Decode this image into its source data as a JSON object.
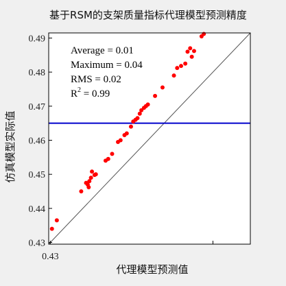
{
  "chart_data": {
    "type": "scatter",
    "title": "基于RSM的支架质量指标代理模型预测精度",
    "xlabel": "代理模型预测值",
    "ylabel": "仿真模型实际值",
    "xlim": [
      0.4295,
      0.4915
    ],
    "ylim": [
      0.4295,
      0.4915
    ],
    "xticks": [
      0.43
    ],
    "xtick_labels": [
      "0.43"
    ],
    "yticks": [
      0.43,
      0.44,
      0.45,
      0.46,
      0.47,
      0.48,
      0.49
    ],
    "ytick_labels": [
      "0.43",
      "0.44",
      "0.45",
      "0.46",
      "0.47",
      "0.48",
      "0.49"
    ],
    "minor_xtick_at": 0.48,
    "grid": false,
    "colors": {
      "points": "#ff0000",
      "reference_line": "#0000cc",
      "diagonal": "#555555"
    },
    "reference_line_y": 0.465,
    "diagonal": [
      [
        0.4295,
        0.4295
      ],
      [
        0.4915,
        0.4915
      ]
    ],
    "annotations": [
      "Average = 0.01",
      "Maximum = 0.04",
      "RMS = 0.02"
    ],
    "r2_label": {
      "base": "R",
      "sup": "2",
      "rest": " = 0.99"
    },
    "points": [
      [
        0.4305,
        0.434
      ],
      [
        0.432,
        0.4365
      ],
      [
        0.4395,
        0.445
      ],
      [
        0.441,
        0.4475
      ],
      [
        0.4415,
        0.447
      ],
      [
        0.442,
        0.448
      ],
      [
        0.4418,
        0.4462
      ],
      [
        0.4425,
        0.449
      ],
      [
        0.4428,
        0.4508
      ],
      [
        0.4436,
        0.4498
      ],
      [
        0.444,
        0.45
      ],
      [
        0.447,
        0.454
      ],
      [
        0.4478,
        0.4545
      ],
      [
        0.449,
        0.456
      ],
      [
        0.4508,
        0.4595
      ],
      [
        0.4516,
        0.46
      ],
      [
        0.4528,
        0.4615
      ],
      [
        0.4535,
        0.462
      ],
      [
        0.4548,
        0.464
      ],
      [
        0.4555,
        0.4655
      ],
      [
        0.4562,
        0.466
      ],
      [
        0.4568,
        0.4665
      ],
      [
        0.4575,
        0.4678
      ],
      [
        0.458,
        0.4688
      ],
      [
        0.4588,
        0.4695
      ],
      [
        0.4594,
        0.47
      ],
      [
        0.46,
        0.4705
      ],
      [
        0.4622,
        0.473
      ],
      [
        0.4645,
        0.4755
      ],
      [
        0.468,
        0.479
      ],
      [
        0.469,
        0.4812
      ],
      [
        0.4702,
        0.4818
      ],
      [
        0.4715,
        0.4825
      ],
      [
        0.4722,
        0.486
      ],
      [
        0.473,
        0.487
      ],
      [
        0.4735,
        0.4845
      ],
      [
        0.4742,
        0.4862
      ],
      [
        0.4765,
        0.4905
      ],
      [
        0.4772,
        0.4912
      ]
    ]
  }
}
